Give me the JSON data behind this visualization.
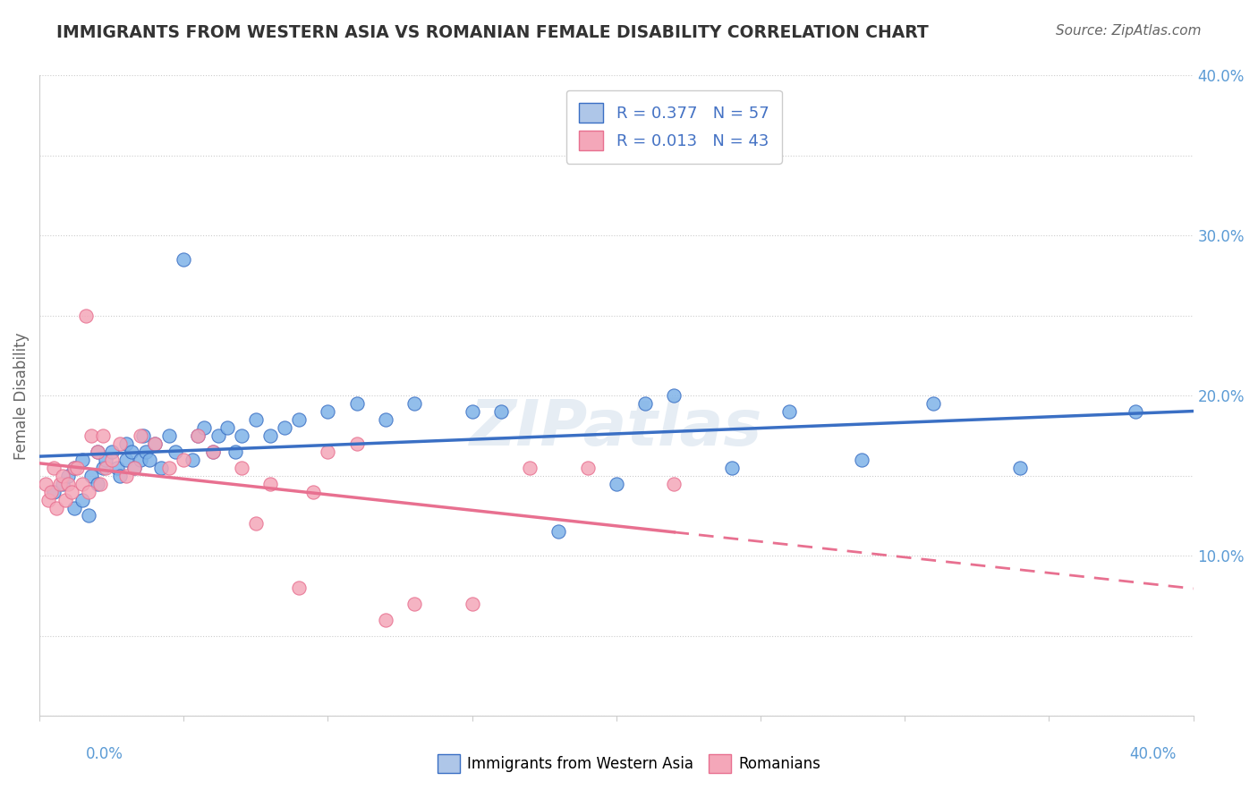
{
  "title": "IMMIGRANTS FROM WESTERN ASIA VS ROMANIAN FEMALE DISABILITY CORRELATION CHART",
  "source": "Source: ZipAtlas.com",
  "ylabel": "Female Disability",
  "xmin": 0.0,
  "xmax": 0.4,
  "ymin": 0.0,
  "ymax": 0.4,
  "grid_color": "#cccccc",
  "background_color": "#ffffff",
  "blue_color": "#7fb3e8",
  "pink_color": "#f4a7b9",
  "blue_line_color": "#3a6fc4",
  "pink_line_color": "#e87090",
  "title_color": "#333333",
  "axis_label_color": "#5b9bd5",
  "legend_R_color": "#4472c4",
  "R_blue": 0.377,
  "N_blue": 57,
  "R_pink": 0.013,
  "N_pink": 43,
  "blue_scatter_x": [
    0.005,
    0.008,
    0.01,
    0.012,
    0.012,
    0.015,
    0.015,
    0.017,
    0.018,
    0.02,
    0.02,
    0.022,
    0.023,
    0.025,
    0.027,
    0.028,
    0.03,
    0.03,
    0.032,
    0.033,
    0.035,
    0.036,
    0.037,
    0.038,
    0.04,
    0.042,
    0.045,
    0.047,
    0.05,
    0.053,
    0.055,
    0.057,
    0.06,
    0.062,
    0.065,
    0.068,
    0.07,
    0.075,
    0.08,
    0.085,
    0.09,
    0.1,
    0.11,
    0.12,
    0.13,
    0.15,
    0.16,
    0.18,
    0.2,
    0.21,
    0.22,
    0.24,
    0.26,
    0.285,
    0.31,
    0.34,
    0.38
  ],
  "blue_scatter_y": [
    0.14,
    0.145,
    0.15,
    0.13,
    0.155,
    0.135,
    0.16,
    0.125,
    0.15,
    0.145,
    0.165,
    0.155,
    0.16,
    0.165,
    0.155,
    0.15,
    0.16,
    0.17,
    0.165,
    0.155,
    0.16,
    0.175,
    0.165,
    0.16,
    0.17,
    0.155,
    0.175,
    0.165,
    0.285,
    0.16,
    0.175,
    0.18,
    0.165,
    0.175,
    0.18,
    0.165,
    0.175,
    0.185,
    0.175,
    0.18,
    0.185,
    0.19,
    0.195,
    0.185,
    0.195,
    0.19,
    0.19,
    0.115,
    0.145,
    0.195,
    0.2,
    0.155,
    0.19,
    0.16,
    0.195,
    0.155,
    0.19
  ],
  "pink_scatter_x": [
    0.002,
    0.003,
    0.004,
    0.005,
    0.006,
    0.007,
    0.008,
    0.009,
    0.01,
    0.011,
    0.012,
    0.013,
    0.015,
    0.016,
    0.017,
    0.018,
    0.02,
    0.021,
    0.022,
    0.023,
    0.025,
    0.028,
    0.03,
    0.033,
    0.035,
    0.04,
    0.045,
    0.05,
    0.055,
    0.06,
    0.07,
    0.075,
    0.08,
    0.09,
    0.095,
    0.1,
    0.11,
    0.12,
    0.13,
    0.15,
    0.17,
    0.19,
    0.22
  ],
  "pink_scatter_y": [
    0.145,
    0.135,
    0.14,
    0.155,
    0.13,
    0.145,
    0.15,
    0.135,
    0.145,
    0.14,
    0.155,
    0.155,
    0.145,
    0.25,
    0.14,
    0.175,
    0.165,
    0.145,
    0.175,
    0.155,
    0.16,
    0.17,
    0.15,
    0.155,
    0.175,
    0.17,
    0.155,
    0.16,
    0.175,
    0.165,
    0.155,
    0.12,
    0.145,
    0.08,
    0.14,
    0.165,
    0.17,
    0.06,
    0.07,
    0.07,
    0.155,
    0.155,
    0.145
  ],
  "watermark": "ZIPatlas",
  "legend_box_color_blue": "#aec6e8",
  "legend_box_color_pink": "#f4a7b9"
}
